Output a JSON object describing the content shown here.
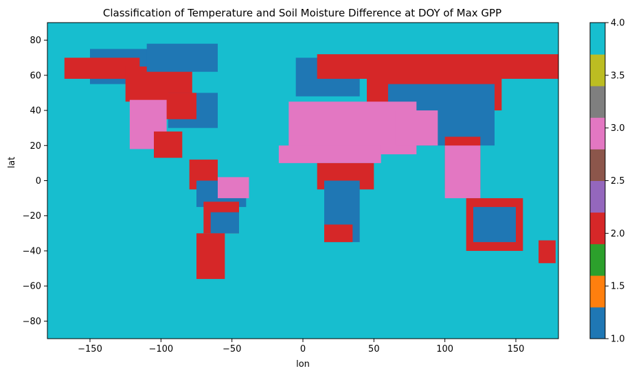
{
  "chart_data": {
    "type": "heatmap",
    "title": "Classification of Temperature and Soil Moisture Difference at DOY of Max GPP",
    "xlabel": "lon",
    "ylabel": "lat",
    "xlim": [
      -180,
      180
    ],
    "ylim": [
      -90,
      90
    ],
    "x_ticks": [
      -150,
      -100,
      -50,
      0,
      50,
      100,
      150
    ],
    "x_tick_labels": [
      "−150",
      "−100",
      "−50",
      "0",
      "50",
      "100",
      "150"
    ],
    "y_ticks": [
      80,
      60,
      40,
      20,
      0,
      -20,
      -40,
      -60,
      -80
    ],
    "y_tick_labels": [
      "80",
      "60",
      "40",
      "20",
      "0",
      "−20",
      "−40",
      "−60",
      "−80"
    ],
    "colorbar": {
      "range": [
        1.0,
        4.0
      ],
      "tick_values": [
        1.0,
        1.5,
        2.0,
        2.5,
        3.0,
        3.5,
        4.0
      ],
      "tick_labels": [
        "1.0",
        "1.5",
        "2.0",
        "2.5",
        "3.0",
        "3.5",
        "4.0"
      ],
      "colors": [
        "#1f77b4",
        "#ff7f0e",
        "#2ca02c",
        "#d62728",
        "#9467bd",
        "#8c564b",
        "#e377c2",
        "#7f7f7f",
        "#bcbd22",
        "#17becf"
      ]
    },
    "background_class": 4,
    "class_colors": {
      "1": "#1f77b4",
      "2": "#d62728",
      "3": "#e377c2",
      "4": "#17becf"
    },
    "regions": [
      {
        "class": 1,
        "lon": [
          -150,
          -100
        ],
        "lat": [
          55,
          75
        ]
      },
      {
        "class": 2,
        "lon": [
          -168,
          -115
        ],
        "lat": [
          58,
          70
        ]
      },
      {
        "class": 2,
        "lon": [
          -125,
          -78
        ],
        "lat": [
          45,
          65
        ]
      },
      {
        "class": 1,
        "lon": [
          -110,
          -60
        ],
        "lat": [
          62,
          78
        ]
      },
      {
        "class": 1,
        "lon": [
          -95,
          -60
        ],
        "lat": [
          30,
          50
        ]
      },
      {
        "class": 2,
        "lon": [
          -100,
          -75
        ],
        "lat": [
          35,
          50
        ]
      },
      {
        "class": 3,
        "lon": [
          -122,
          -96
        ],
        "lat": [
          18,
          46
        ]
      },
      {
        "class": 2,
        "lon": [
          -105,
          -85
        ],
        "lat": [
          13,
          28
        ]
      },
      {
        "class": 2,
        "lon": [
          -80,
          -60
        ],
        "lat": [
          -5,
          12
        ]
      },
      {
        "class": 1,
        "lon": [
          -75,
          -40
        ],
        "lat": [
          -15,
          0
        ]
      },
      {
        "class": 3,
        "lon": [
          -60,
          -38
        ],
        "lat": [
          -10,
          2
        ]
      },
      {
        "class": 2,
        "lon": [
          -70,
          -45
        ],
        "lat": [
          -30,
          -12
        ]
      },
      {
        "class": 1,
        "lon": [
          -65,
          -45
        ],
        "lat": [
          -30,
          -18
        ]
      },
      {
        "class": 2,
        "lon": [
          -75,
          -55
        ],
        "lat": [
          -56,
          -30
        ]
      },
      {
        "class": 1,
        "lon": [
          -5,
          40
        ],
        "lat": [
          48,
          70
        ]
      },
      {
        "class": 2,
        "lon": [
          10,
          180
        ],
        "lat": [
          58,
          72
        ]
      },
      {
        "class": 2,
        "lon": [
          45,
          140
        ],
        "lat": [
          40,
          60
        ]
      },
      {
        "class": 1,
        "lon": [
          60,
          135
        ],
        "lat": [
          20,
          55
        ]
      },
      {
        "class": 3,
        "lon": [
          -10,
          80
        ],
        "lat": [
          15,
          45
        ]
      },
      {
        "class": 3,
        "lon": [
          65,
          95
        ],
        "lat": [
          20,
          40
        ]
      },
      {
        "class": 3,
        "lon": [
          -17,
          55
        ],
        "lat": [
          10,
          20
        ]
      },
      {
        "class": 2,
        "lon": [
          10,
          50
        ],
        "lat": [
          -5,
          10
        ]
      },
      {
        "class": 1,
        "lon": [
          15,
          40
        ],
        "lat": [
          -35,
          0
        ]
      },
      {
        "class": 2,
        "lon": [
          15,
          35
        ],
        "lat": [
          -35,
          -25
        ]
      },
      {
        "class": 2,
        "lon": [
          100,
          125
        ],
        "lat": [
          -5,
          25
        ]
      },
      {
        "class": 3,
        "lon": [
          100,
          125
        ],
        "lat": [
          -10,
          20
        ]
      },
      {
        "class": 2,
        "lon": [
          115,
          155
        ],
        "lat": [
          -40,
          -10
        ]
      },
      {
        "class": 1,
        "lon": [
          120,
          150
        ],
        "lat": [
          -35,
          -15
        ]
      },
      {
        "class": 2,
        "lon": [
          166,
          178
        ],
        "lat": [
          -47,
          -34
        ]
      }
    ]
  }
}
